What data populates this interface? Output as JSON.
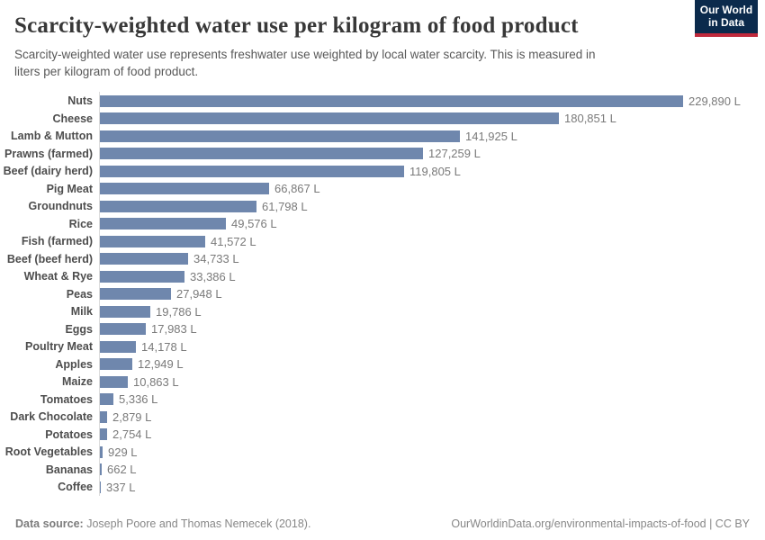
{
  "header": {
    "title": "Scarcity-weighted water use per kilogram of food product",
    "subtitle_lines": [
      "Scarcity-weighted water use represents freshwater use weighted by local water scarcity. This is measured in",
      "liters per kilogram of food product."
    ],
    "logo": {
      "line1": "Our World",
      "line2": "in Data"
    }
  },
  "chart_data": {
    "type": "bar",
    "orientation": "horizontal",
    "title": "Scarcity-weighted water use per kilogram of food product",
    "xlabel": "",
    "ylabel": "",
    "unit": "liters per kilogram of food product",
    "xlim": [
      0,
      229890
    ],
    "grid": false,
    "legend": false,
    "bar_color": "#6f87ad",
    "axis_line_color": "#dcdcdc",
    "categories": [
      "Nuts",
      "Cheese",
      "Lamb & Mutton",
      "Prawns (farmed)",
      "Beef (dairy herd)",
      "Pig Meat",
      "Groundnuts",
      "Rice",
      "Fish (farmed)",
      "Beef (beef herd)",
      "Wheat & Rye",
      "Peas",
      "Milk",
      "Eggs",
      "Poultry Meat",
      "Apples",
      "Maize",
      "Tomatoes",
      "Dark Chocolate",
      "Potatoes",
      "Root Vegetables",
      "Bananas",
      "Coffee"
    ],
    "values": [
      229890,
      180851,
      141925,
      127259,
      119805,
      66867,
      61798,
      49576,
      41572,
      34733,
      33386,
      27948,
      19786,
      17983,
      14178,
      12949,
      10863,
      5336,
      2879,
      2754,
      929,
      662,
      337
    ],
    "value_labels": [
      "229,890 L",
      "180,851 L",
      "141,925 L",
      "127,259 L",
      "119,805 L",
      "66,867 L",
      "61,798 L",
      "49,576 L",
      "41,572 L",
      "34,733 L",
      "33,386 L",
      "27,948 L",
      "19,786 L",
      "17,983 L",
      "14,178 L",
      "12,949 L",
      "10,863 L",
      "5,336 L",
      "2,879 L",
      "2,754 L",
      "929 L",
      "662 L",
      "337 L"
    ]
  },
  "footer": {
    "source_label": "Data source:",
    "source_text": " Joseph Poore and Thomas Nemecek (2018).",
    "right_text": "OurWorldinData.org/environmental-impacts-of-food | CC BY"
  }
}
